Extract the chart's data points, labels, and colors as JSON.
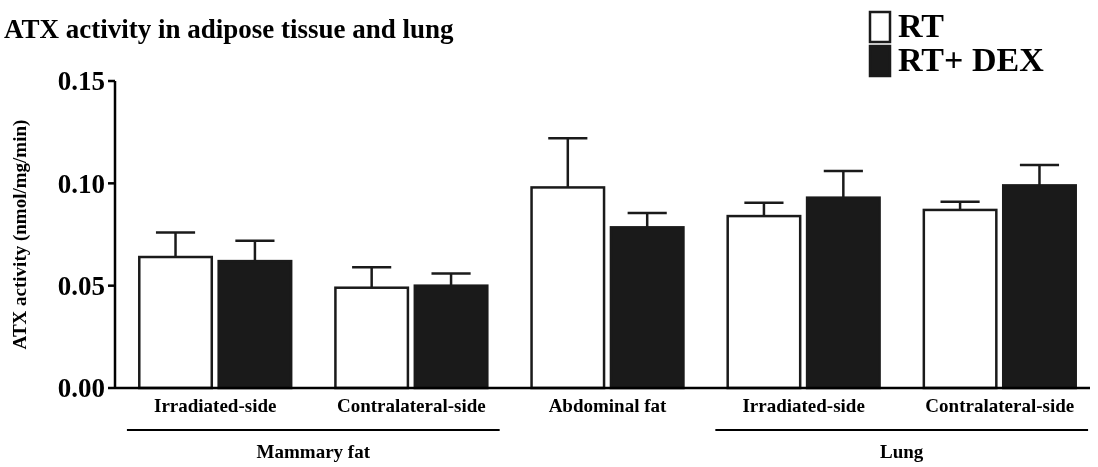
{
  "chart_data": {
    "type": "bar",
    "title": "ATX activity in adipose tissue and lung",
    "ylabel": "ATX activity (nmol/mg/min)",
    "categories": [
      "Irradiated-side",
      "Contralateral-side",
      "Abdominal fat",
      "Irradiated-side",
      "Contralateral-side"
    ],
    "series": [
      {
        "name": "RT",
        "color": "#ffffff",
        "values": [
          0.064,
          0.049,
          0.098,
          0.084,
          0.087
        ],
        "errors": [
          0.012,
          0.01,
          0.024,
          0.0065,
          0.004
        ]
      },
      {
        "name": "RT+ DEX",
        "color": "#1a1a1a",
        "values": [
          0.062,
          0.05,
          0.0785,
          0.093,
          0.099
        ],
        "errors": [
          0.01,
          0.006,
          0.007,
          0.013,
          0.01
        ]
      }
    ],
    "ylim": [
      0,
      0.15
    ],
    "yticks": [
      {
        "value": 0,
        "label": "0.00"
      },
      {
        "value": 0.05,
        "label": "0.05"
      },
      {
        "value": 0.1,
        "label": "0.10"
      },
      {
        "value": 0.15,
        "label": "0.15"
      }
    ],
    "legend": "top right",
    "grid": false,
    "annotations": [
      "Mammary fat",
      "Lung"
    ]
  }
}
